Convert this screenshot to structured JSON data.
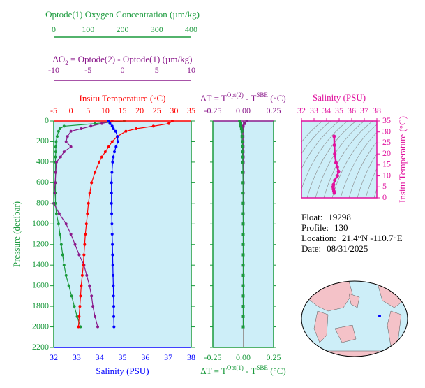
{
  "chart_data": [
    {
      "type": "profile",
      "ylabel": "Pressure (decibar)",
      "ylim": [
        0,
        2200
      ],
      "yticks": [
        0,
        200,
        400,
        600,
        800,
        1000,
        1200,
        1400,
        1600,
        1800,
        2000,
        2200
      ],
      "pressure": [
        0,
        25,
        50,
        75,
        100,
        150,
        200,
        250,
        300,
        350,
        400,
        500,
        600,
        700,
        800,
        900,
        1000,
        1100,
        1200,
        1300,
        1400,
        1500,
        1600,
        1700,
        1800,
        1900,
        2000
      ],
      "axes": [
        {
          "label_parts": [
            "Optode(1) Oxygen Concentration (µm/kg)"
          ],
          "color": "#1a9a3c",
          "xlim": [
            0,
            400
          ],
          "xticks": [
            0,
            100,
            200,
            300,
            400
          ],
          "values": [
            205,
            120,
            30,
            18,
            14,
            10,
            7,
            6,
            6,
            5,
            5,
            5,
            5,
            5,
            5,
            8,
            14,
            18,
            22,
            26,
            30,
            36,
            44,
            52,
            60,
            68,
            78
          ]
        },
        {
          "label_parts": [
            "ΔO",
            "2",
            " = Optode(2) - Optode(1)     (µm/kg)"
          ],
          "color": "#8b1a8b",
          "xlim": [
            -10,
            10
          ],
          "xticks": [
            -10,
            -5,
            0,
            5,
            10
          ],
          "values": [
            -1.5,
            -3,
            -4.6,
            -6,
            -7.5,
            -8,
            -8.2,
            -7.5,
            -8.5,
            -9,
            -9.6,
            -9.7,
            -9.8,
            -9.9,
            -10,
            -9.2,
            -8.2,
            -7.5,
            -6.9,
            -6.3,
            -5.6,
            -5.2,
            -4.8,
            -4.5,
            -4.3,
            -4,
            -3.6
          ]
        },
        {
          "label_parts": [
            "Insitu Temperature (°C)"
          ],
          "color": "#ff0000",
          "xlim": [
            -5,
            35
          ],
          "xticks": [
            -5,
            0,
            5,
            10,
            15,
            20,
            25,
            30,
            35
          ],
          "values": [
            29.5,
            28.5,
            24,
            19,
            16,
            13.5,
            12,
            11,
            10,
            9,
            8.2,
            7,
            6,
            5.5,
            5.1,
            4.8,
            4.5,
            4.2,
            4.0,
            3.8,
            3.6,
            3.3,
            3.0,
            2.8,
            2.6,
            2.4,
            2.2
          ]
        },
        {
          "label_parts": [
            "Salinity (PSU)"
          ],
          "color": "#0000ff",
          "xlim": [
            32,
            38
          ],
          "xticks": [
            32,
            33,
            34,
            35,
            36,
            37,
            38
          ],
          "values": [
            34.4,
            34.45,
            34.55,
            34.6,
            34.7,
            34.78,
            34.8,
            34.72,
            34.65,
            34.6,
            34.57,
            34.54,
            34.52,
            34.52,
            34.52,
            34.53,
            34.54,
            34.55,
            34.56,
            34.57,
            34.58,
            34.59,
            34.6,
            34.61,
            34.62,
            34.62,
            34.63
          ]
        }
      ]
    },
    {
      "type": "profile",
      "axes": [
        {
          "label_parts": [
            "ΔT = T",
            "Opt(2)",
            " - T",
            "SBE",
            " (°C)"
          ],
          "color": "#8b1a8b",
          "xlim": [
            -0.25,
            0.25
          ],
          "xticks": [
            -0.25,
            {
              "value": 0,
              "label": "0.00"
            },
            0.25
          ],
          "values": [
            0.03,
            0.01,
            0.0,
            -0.005,
            -0.003,
            -0.002,
            -0.002,
            -0.001,
            -0.001,
            0,
            0,
            0,
            0,
            0,
            0,
            0,
            0,
            0,
            0,
            0,
            0,
            0,
            0,
            0,
            0,
            0,
            0
          ]
        },
        {
          "label_parts": [
            "ΔT = T",
            "Opt(1)",
            " - T",
            "SBE",
            " (°C)"
          ],
          "color": "#1a9a3c",
          "xlim": [
            -0.25,
            0.25
          ],
          "xticks": [
            -0.25,
            {
              "value": 0,
              "label": "0.00"
            },
            0.25
          ],
          "values": [
            -0.03,
            -0.02,
            -0.02,
            -0.015,
            -0.01,
            -0.01,
            -0.008,
            -0.006,
            -0.005,
            -0.005,
            -0.004,
            -0.003,
            -0.002,
            -0.002,
            -0.001,
            -0.001,
            0,
            0,
            0,
            0,
            0,
            0,
            0,
            0,
            0,
            0,
            0
          ]
        }
      ]
    },
    {
      "type": "scatter",
      "color": "#e0119d",
      "xlabel": "Salinity (PSU)",
      "ylabel": "Insitu Temperature (°C)",
      "xlim": [
        32,
        38
      ],
      "xticks": [
        32,
        33,
        34,
        35,
        36,
        37,
        38
      ],
      "ylim": [
        0,
        35
      ],
      "yticks": [
        0,
        5,
        10,
        15,
        20,
        25,
        30,
        35
      ],
      "x": [
        34.6,
        34.62,
        34.65,
        34.75,
        34.85,
        34.95,
        34.85,
        34.65,
        34.55,
        34.52,
        34.54,
        34.58,
        34.62
      ],
      "values": [
        28,
        24,
        20,
        16,
        14,
        12,
        10,
        8,
        6,
        5,
        4,
        3,
        2.2
      ]
    }
  ],
  "info": [
    {
      "label": "Float:",
      "value": "19298"
    },
    {
      "label": "Profile:",
      "value": "130"
    },
    {
      "label": "Location:",
      "value": "21.4°N  -110.7°E"
    },
    {
      "label": "Date:",
      "value": "08/31/2025"
    }
  ]
}
